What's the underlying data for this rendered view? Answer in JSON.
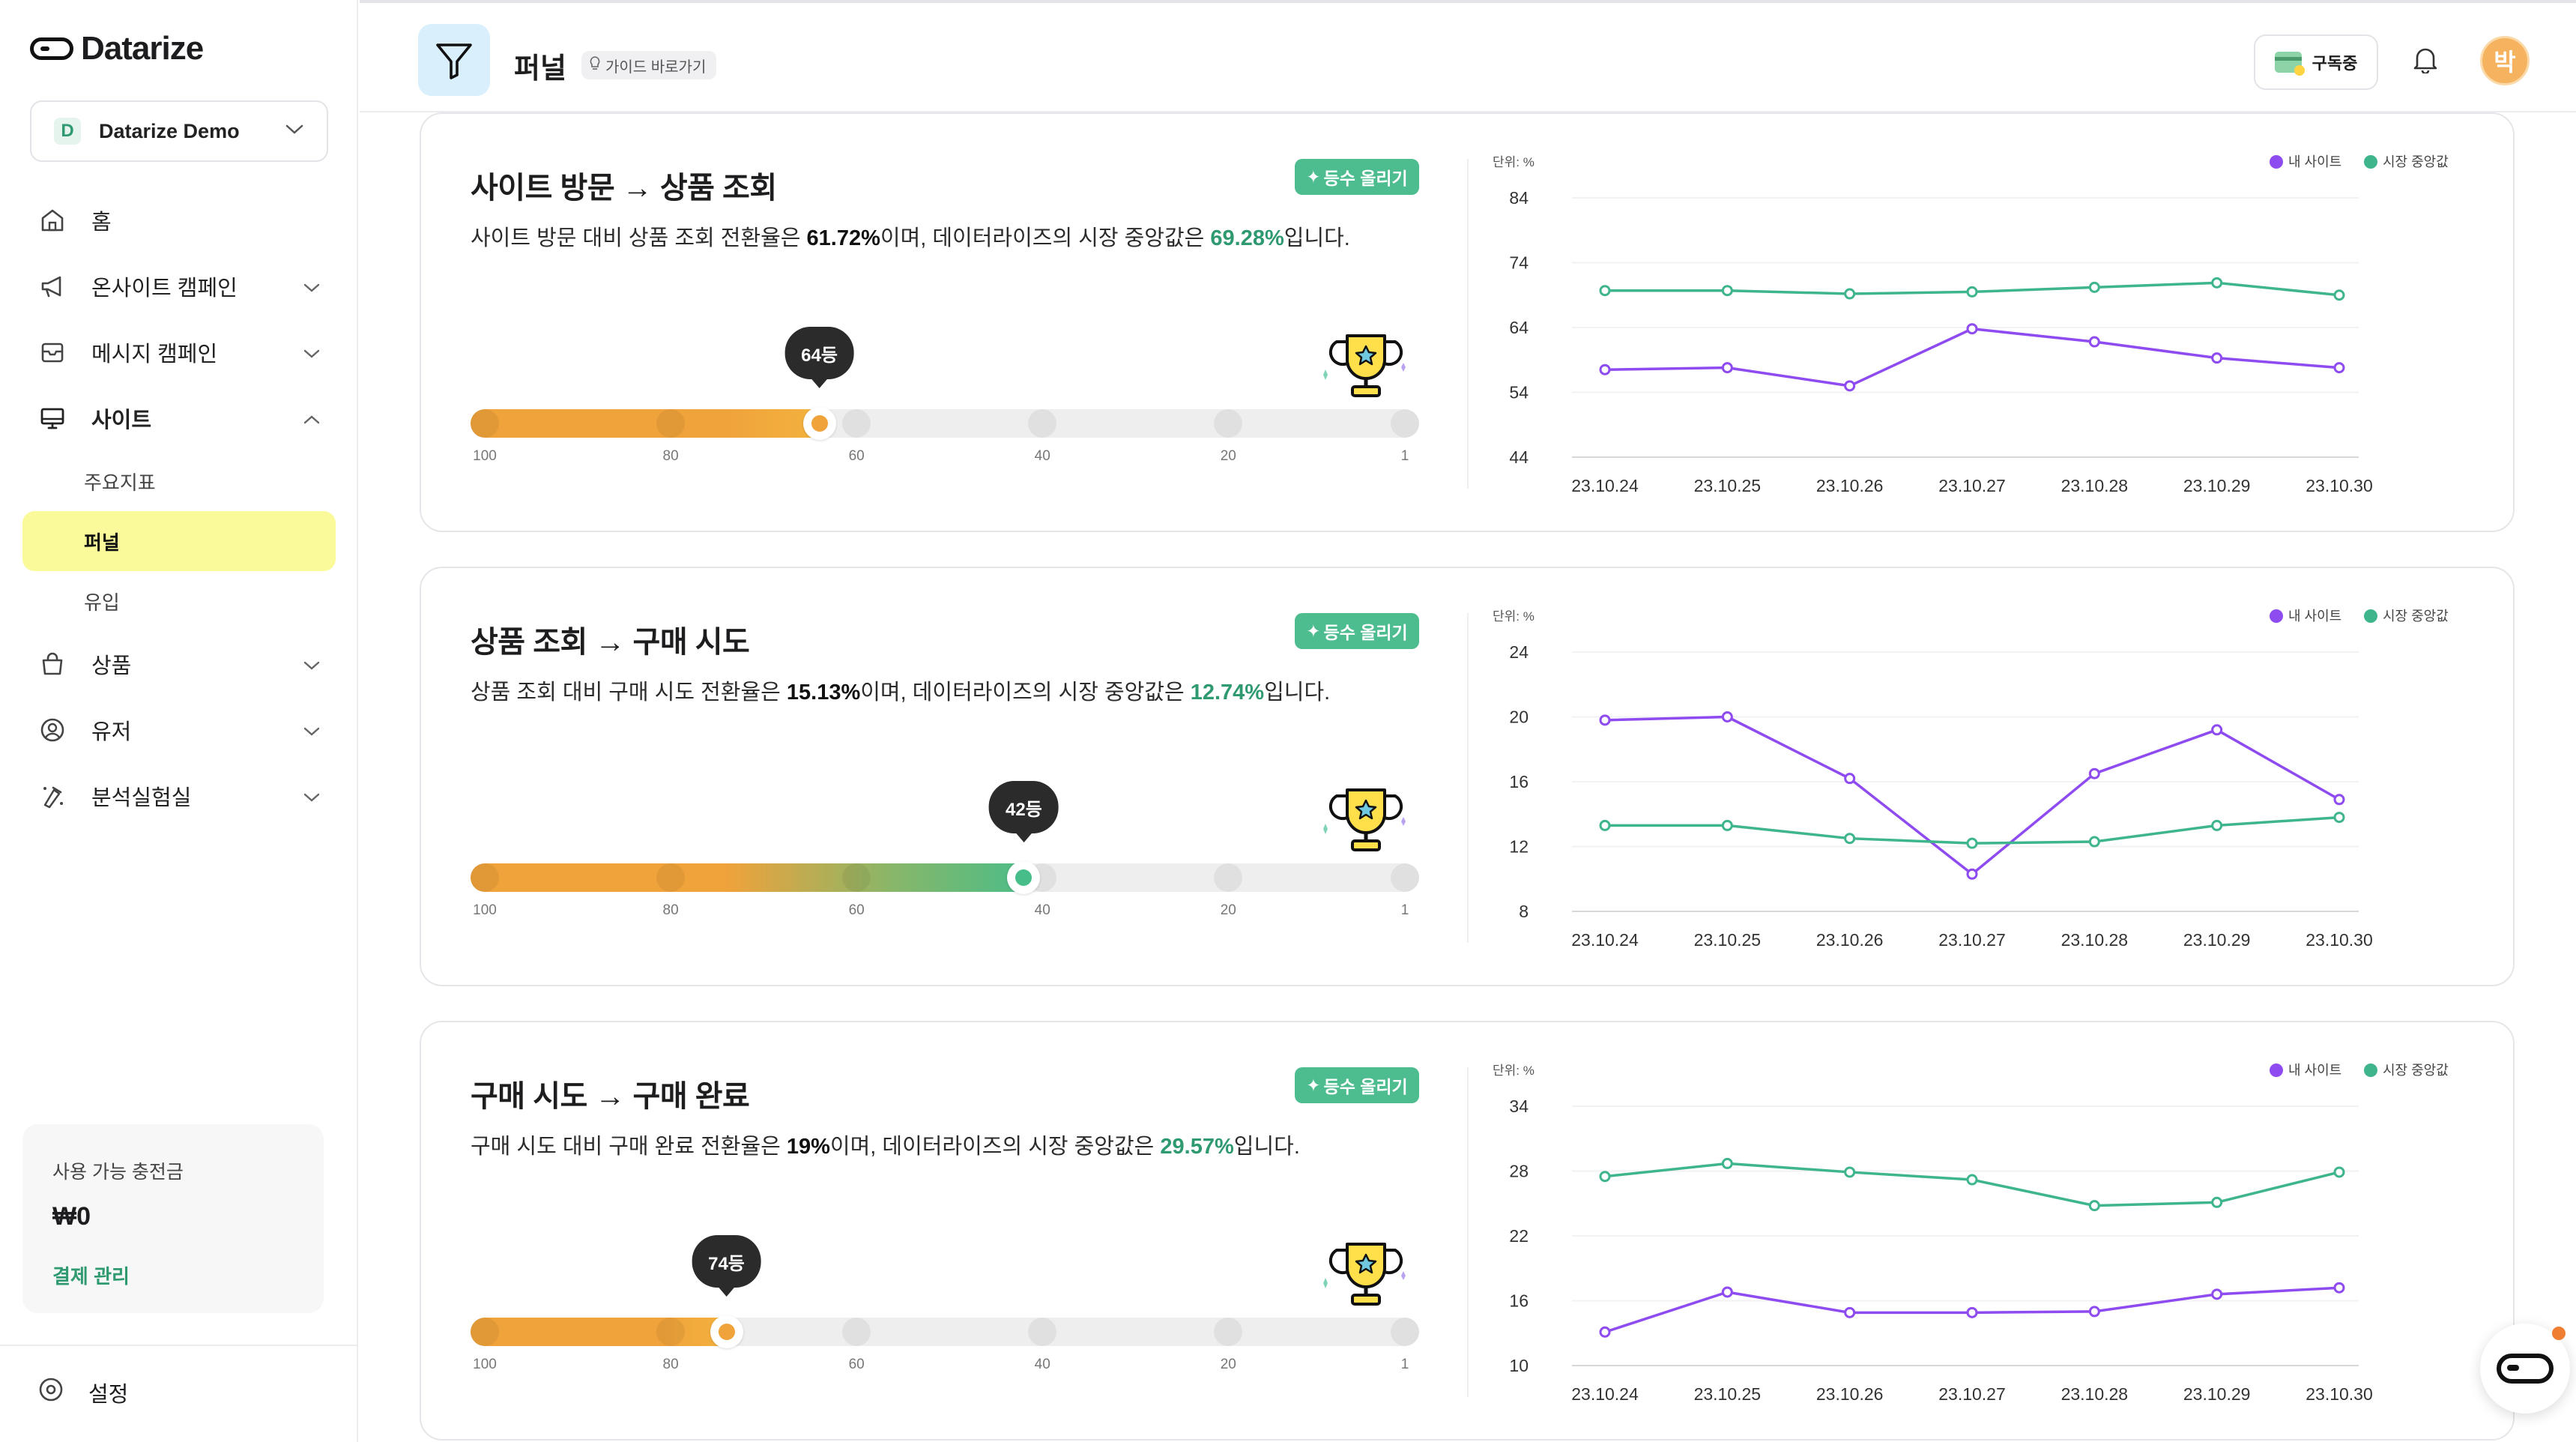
{
  "app": {
    "logo_text": "Datarize"
  },
  "sidebar": {
    "workspace": {
      "badge": "D",
      "name": "Datarize Demo"
    },
    "items": [
      {
        "label": "홈",
        "icon": "home-icon"
      },
      {
        "label": "온사이트 캠페인",
        "icon": "megaphone-icon"
      },
      {
        "label": "메시지 캠페인",
        "icon": "message-icon"
      },
      {
        "label": "사이트",
        "icon": "monitor-icon"
      }
    ],
    "site_sub": [
      {
        "label": "주요지표"
      },
      {
        "label": "퍼널"
      },
      {
        "label": "유입"
      }
    ],
    "items_after": [
      {
        "label": "상품",
        "icon": "bag-icon"
      },
      {
        "label": "유저",
        "icon": "user-icon"
      },
      {
        "label": "분석실험실",
        "icon": "flask-icon"
      }
    ],
    "credit": {
      "label": "사용 가능 충전금",
      "value": "₩0",
      "link": "결제 관리"
    },
    "settings_label": "설정"
  },
  "header": {
    "title": "퍼널",
    "guide": "가이드 바로가기",
    "subscribe": "구독중",
    "avatar": "박"
  },
  "colors": {
    "my_site": "#8e4bf0",
    "market": "#3fb58c",
    "accent": "#4dbc8e"
  },
  "funnels": [
    {
      "title": "사이트 방문 → 상품 조회",
      "rank_button": "등수 올리기",
      "desc": {
        "pre": "사이트 방문 대비 상품 조회 전환율은 ",
        "my_rate": "61.72%",
        "mid": "이며, 데이터라이즈의 시장 중앙값은 ",
        "market_rate": "69.28%",
        "post": "입니다."
      },
      "rank_label": "64등",
      "rank_value": 64,
      "scale_labels": [
        "100",
        "80",
        "60",
        "40",
        "20",
        "1"
      ]
    },
    {
      "title": "상품 조회 → 구매 시도",
      "rank_button": "등수 올리기",
      "desc": {
        "pre": "상품 조회 대비 구매 시도 전환율은 ",
        "my_rate": "15.13%",
        "mid": "이며, 데이터라이즈의 시장 중앙값은 ",
        "market_rate": "12.74%",
        "post": "입니다."
      },
      "rank_label": "42등",
      "rank_value": 42,
      "scale_labels": [
        "100",
        "80",
        "60",
        "40",
        "20",
        "1"
      ]
    },
    {
      "title": "구매 시도 → 구매 완료",
      "rank_button": "등수 올리기",
      "desc": {
        "pre": "구매 시도 대비 구매 완료 전환율은 ",
        "my_rate": "19%",
        "mid": "이며, 데이터라이즈의 시장 중앙값은 ",
        "market_rate": "29.57%",
        "post": "입니다."
      },
      "rank_label": "74등",
      "rank_value": 74,
      "scale_labels": [
        "100",
        "80",
        "60",
        "40",
        "20",
        "1"
      ]
    }
  ],
  "chart_data": [
    {
      "type": "line",
      "unit_label": "단위: %",
      "categories": [
        "23.10.24",
        "23.10.25",
        "23.10.26",
        "23.10.27",
        "23.10.28",
        "23.10.29",
        "23.10.30"
      ],
      "yticks": [
        84,
        74,
        64,
        54,
        44
      ],
      "ylim": [
        44,
        84
      ],
      "legend_position": "top-right",
      "series": [
        {
          "name": "내 사이트",
          "values": [
            57.5,
            57.8,
            55,
            63.8,
            61.8,
            59.3,
            57.8
          ]
        },
        {
          "name": "시장 중앙값",
          "values": [
            69.7,
            69.7,
            69.2,
            69.5,
            70.2,
            70.9,
            69
          ]
        }
      ]
    },
    {
      "type": "line",
      "unit_label": "단위: %",
      "categories": [
        "23.10.24",
        "23.10.25",
        "23.10.26",
        "23.10.27",
        "23.10.28",
        "23.10.29",
        "23.10.30"
      ],
      "yticks": [
        24,
        20,
        16,
        12,
        8
      ],
      "ylim": [
        8,
        24
      ],
      "legend_position": "top-right",
      "series": [
        {
          "name": "내 사이트",
          "values": [
            19.8,
            20.0,
            16.2,
            10.3,
            16.5,
            19.2,
            14.9
          ]
        },
        {
          "name": "시장 중앙값",
          "values": [
            13.3,
            13.3,
            12.5,
            12.2,
            12.3,
            13.3,
            13.8
          ]
        }
      ]
    },
    {
      "type": "line",
      "unit_label": "단위: %",
      "categories": [
        "23.10.24",
        "23.10.25",
        "23.10.26",
        "23.10.27",
        "23.10.28",
        "23.10.29",
        "23.10.30"
      ],
      "yticks": [
        34,
        28,
        22,
        16,
        10
      ],
      "ylim": [
        10,
        34
      ],
      "legend_position": "top-right",
      "series": [
        {
          "name": "내 사이트",
          "values": [
            13.1,
            16.8,
            14.9,
            14.9,
            15.0,
            16.6,
            17.2
          ]
        },
        {
          "name": "시장 중앙값",
          "values": [
            27.5,
            28.7,
            27.9,
            27.2,
            24.8,
            25.1,
            27.9
          ]
        }
      ]
    }
  ]
}
